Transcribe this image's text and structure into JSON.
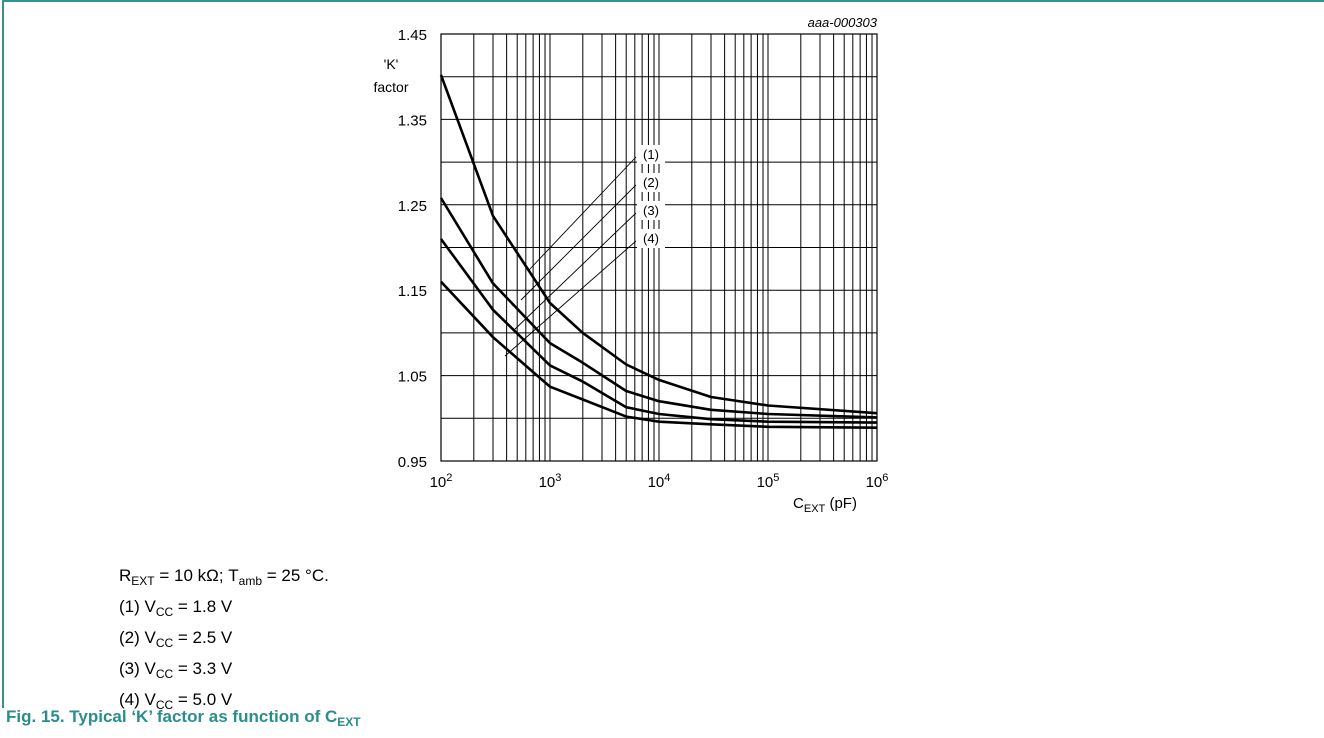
{
  "chart_data": {
    "type": "line",
    "figure_id": "aaa-000303",
    "ylabel_line1": "'K'",
    "ylabel_line2": "factor",
    "xlabel_main": "C",
    "xlabel_sub": "EXT",
    "xlabel_unit": " (pF)",
    "x_scale": "log",
    "xlim": [
      100,
      1000000
    ],
    "ylim": [
      0.95,
      1.45
    ],
    "grid": true,
    "y_ticks": [
      "0.95",
      "1.05",
      "1.15",
      "1.25",
      "1.35",
      "1.45"
    ],
    "x_ticks": [
      {
        "base": "10",
        "exp": "2",
        "value": 100
      },
      {
        "base": "10",
        "exp": "3",
        "value": 1000
      },
      {
        "base": "10",
        "exp": "4",
        "value": 10000
      },
      {
        "base": "10",
        "exp": "5",
        "value": 100000
      },
      {
        "base": "10",
        "exp": "6",
        "value": 1000000
      }
    ],
    "series": [
      {
        "name": "(1)",
        "x": [
          100,
          300,
          1000,
          2000,
          5000,
          10000,
          30000,
          100000,
          1000000
        ],
        "y": [
          1.402,
          1.237,
          1.135,
          1.1,
          1.063,
          1.045,
          1.025,
          1.015,
          1.006
        ]
      },
      {
        "name": "(2)",
        "x": [
          100,
          300,
          1000,
          2000,
          5000,
          10000,
          30000,
          100000,
          1000000
        ],
        "y": [
          1.258,
          1.158,
          1.088,
          1.065,
          1.032,
          1.02,
          1.01,
          1.005,
          1.001
        ]
      },
      {
        "name": "(3)",
        "x": [
          100,
          300,
          1000,
          2000,
          5000,
          10000,
          30000,
          100000,
          1000000
        ],
        "y": [
          1.21,
          1.127,
          1.062,
          1.043,
          1.013,
          1.005,
          0.999,
          0.996,
          0.995
        ]
      },
      {
        "name": "(4)",
        "x": [
          100,
          300,
          1000,
          2000,
          5000,
          10000,
          30000,
          100000,
          1000000
        ],
        "y": [
          1.16,
          1.095,
          1.037,
          1.022,
          1.002,
          0.996,
          0.993,
          0.99,
          0.989
        ]
      }
    ]
  },
  "notes": {
    "conditions": {
      "r": "R",
      "r_sub": "EXT",
      "r_rest": " = 10 kΩ; T",
      "t_sub": "amb",
      "t_rest": " = 25 °C."
    },
    "items": [
      {
        "prefix": "(1) V",
        "sub": "CC",
        "rest": " = 1.8 V"
      },
      {
        "prefix": "(2) V",
        "sub": "CC",
        "rest": " = 2.5 V"
      },
      {
        "prefix": "(3) V",
        "sub": "CC",
        "rest": " = 3.3 V"
      },
      {
        "prefix": "(4) V",
        "sub": "CC",
        "rest": " = 5.0 V"
      }
    ]
  },
  "caption": {
    "main": "Fig. 15.  Typical ‘K’ factor as function of C",
    "sub": "EXT"
  }
}
